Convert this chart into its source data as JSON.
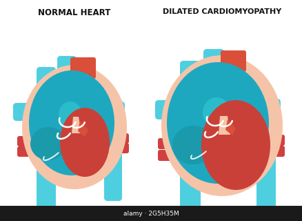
{
  "title_left": "NORMAL HEART",
  "title_right": "DILATED CARDIOMYOPATHY",
  "bg_color": "#ffffff",
  "blue_light": "#4ecfe0",
  "blue_dark": "#1ea8bf",
  "blue_teal": "#2bbccc",
  "red_atrium": "#d94f3a",
  "red_ventricle": "#c94038",
  "red_vessel": "#d04040",
  "skin": "#f5c4a8",
  "white": "#ffffff",
  "teal_dark": "#1a9aaa",
  "bottom_bar": "#1a1a1a",
  "watermark_text": "alamy · 2G5H35M"
}
